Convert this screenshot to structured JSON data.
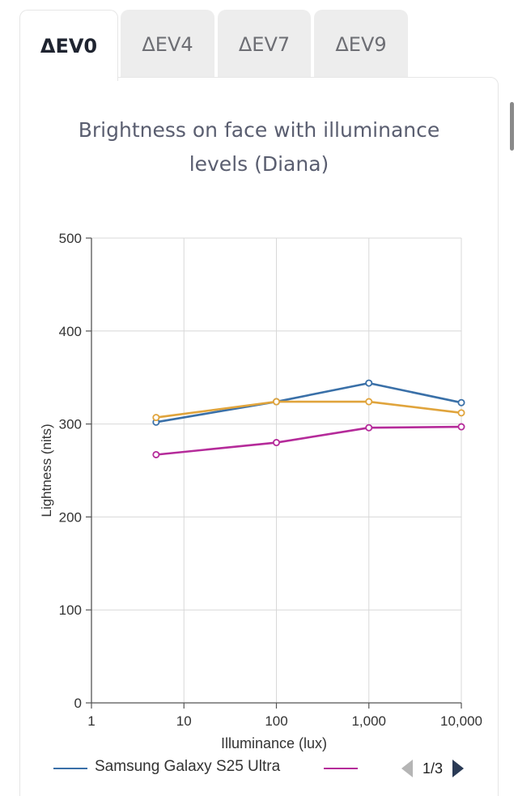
{
  "tabs": [
    {
      "label": "ΔEV0",
      "active": true
    },
    {
      "label": "ΔEV4",
      "active": false
    },
    {
      "label": "ΔEV7",
      "active": false
    },
    {
      "label": "ΔEV9",
      "active": false
    }
  ],
  "legend": {
    "series_1": "Samsung Galaxy S25 Ultra",
    "series_2": "",
    "page": "1/3"
  },
  "colors": {
    "blue": "#3a70a8",
    "orange": "#e0a43c",
    "magenta": "#b52b9a",
    "grid": "#d8d8d8"
  },
  "chart_data": {
    "type": "line",
    "title": "Brightness on face with illuminance levels (Diana)",
    "xlabel": "Illuminance (lux)",
    "ylabel": "Lightness (nits)",
    "xscale": "log",
    "xlim": [
      1,
      10000
    ],
    "ylim": [
      0,
      500
    ],
    "xticks": [
      {
        "value": 1,
        "label": "1"
      },
      {
        "value": 10,
        "label": "10"
      },
      {
        "value": 100,
        "label": "100"
      },
      {
        "value": 1000,
        "label": "1,000"
      },
      {
        "value": 10000,
        "label": "10,000"
      }
    ],
    "yticks": [
      {
        "value": 0,
        "label": "0"
      },
      {
        "value": 100,
        "label": "100"
      },
      {
        "value": 200,
        "label": "200"
      },
      {
        "value": 300,
        "label": "300"
      },
      {
        "value": 400,
        "label": "400"
      },
      {
        "value": 500,
        "label": "500"
      }
    ],
    "series": [
      {
        "name": "Samsung Galaxy S25 Ultra",
        "color": "#3a70a8",
        "x": [
          5,
          100,
          1000,
          10000
        ],
        "values": [
          302,
          324,
          344,
          323
        ]
      },
      {
        "name": "",
        "color": "#e0a43c",
        "x": [
          5,
          100,
          1000,
          10000
        ],
        "values": [
          307,
          324,
          324,
          312
        ]
      },
      {
        "name": "",
        "color": "#b52b9a",
        "x": [
          5,
          100,
          1000,
          10000
        ],
        "values": [
          267,
          280,
          296,
          297
        ]
      }
    ]
  }
}
